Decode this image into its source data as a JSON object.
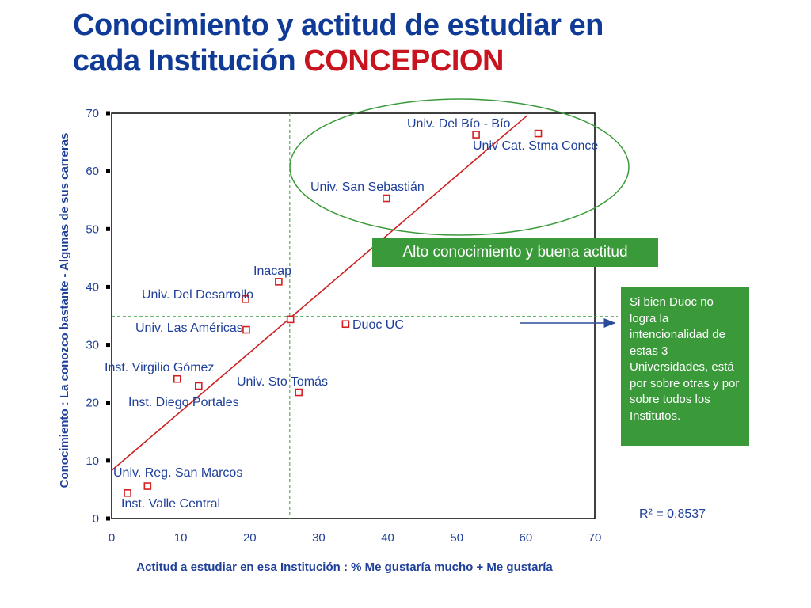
{
  "title": {
    "line1": "Conocimiento y actitud de estudiar en",
    "line2_prefix": "cada Institución ",
    "line2_highlight": "CONCEPCION"
  },
  "callout": "Alto conocimiento y buena actitud",
  "note": "Si bien Duoc no logra la intencionalidad de estas 3 Universidades, está por sobre otras y por sobre todos los Institutos.",
  "r_squared": "R² = 0.8537",
  "colors": {
    "title": "#0f3a96",
    "title_highlight": "#c8141e",
    "points": "#d42020",
    "trendline": "#cc2020",
    "guides": "#3a9a3a",
    "box": "#3a9a3a",
    "text": "#1e3f9a"
  },
  "chart_data": {
    "type": "scatter",
    "xlabel": "Actitud a estudiar en esa Institución : % Me gustaría mucho + Me gustaría",
    "ylabel": "Conocimiento : La conozco bastante - Algunas de sus carreras",
    "xlim": [
      0,
      70
    ],
    "ylim": [
      0,
      70
    ],
    "x_ticks": [
      0,
      10,
      20,
      30,
      40,
      50,
      60,
      70
    ],
    "y_ticks": [
      0,
      10,
      20,
      30,
      40,
      50,
      60,
      70
    ],
    "grid": false,
    "points": [
      {
        "label": "Univ. Del Bío - Bío",
        "x": 52.8,
        "y": 66.3
      },
      {
        "label": "Univ Cat. Stma Conce",
        "x": 61.8,
        "y": 66.5
      },
      {
        "label": "Univ. San Sebastián",
        "x": 39.8,
        "y": 55.3
      },
      {
        "label": "Inacap",
        "x": 24.2,
        "y": 40.9
      },
      {
        "label": "Univ. Del Desarrollo",
        "x": 19.4,
        "y": 37.9
      },
      {
        "label": "Duoc UC",
        "x": 33.9,
        "y": 33.6
      },
      {
        "label": "",
        "x": 25.9,
        "y": 34.4
      },
      {
        "label": "Univ. Las Américas",
        "x": 19.5,
        "y": 32.6
      },
      {
        "label": "Inst. Virgilio Gómez",
        "x": 9.5,
        "y": 24.1
      },
      {
        "label": "Univ. Sto Tomás",
        "x": 27.1,
        "y": 21.8
      },
      {
        "label": "Inst. Diego Portales",
        "x": 12.6,
        "y": 22.9
      },
      {
        "label": "Univ. Reg. San Marcos",
        "x": 5.2,
        "y": 5.6
      },
      {
        "label": "Inst. Valle Central",
        "x": 2.3,
        "y": 4.4
      }
    ],
    "trendline": {
      "x": [
        0,
        60.2
      ],
      "y": [
        8.3,
        69.6
      ]
    },
    "reference_lines": {
      "x": 25.8,
      "y": 34.9
    },
    "r_squared": 0.8537
  }
}
